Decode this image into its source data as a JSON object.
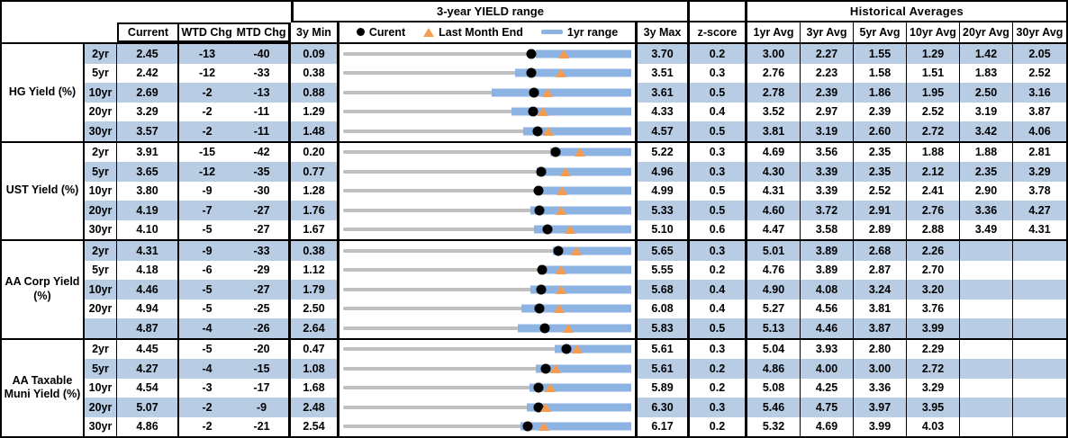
{
  "colors": {
    "stripe": "#b8cce4",
    "bar": "#8db3e2",
    "track": "#bfbfbf",
    "triangle": "#f79b50",
    "dot": "#000000"
  },
  "chart_data": {
    "type": "table",
    "column_groups": {
      "yield_range": "3-year YIELD range",
      "historical": "Historical Averages"
    },
    "columns": [
      "Current",
      "WTD Chg",
      "MTD Chg",
      "3y Min",
      "3y Max",
      "z-score",
      "1yr Avg",
      "3yr Avg",
      "5yr Avg",
      "10yr Avg",
      "20yr Avg",
      "30yr Avg"
    ],
    "legend": [
      {
        "marker": "current-dot",
        "label": "Curent"
      },
      {
        "marker": "last-month-end-triangle",
        "label": "Last Month End"
      },
      {
        "marker": "one-year-range-bar",
        "label": "1yr range"
      }
    ],
    "sections": [
      {
        "label": "HG Yield (%)",
        "rows": [
          {
            "tenor": "2yr",
            "current": "2.45",
            "wtd": "-13",
            "mtd": "-40",
            "min": "0.09",
            "max": "3.70",
            "z": "0.2",
            "bar_lo": 2.5,
            "avgs": [
              "3.00",
              "2.27",
              "1.55",
              "1.29",
              "1.42",
              "2.05"
            ]
          },
          {
            "tenor": "5yr",
            "current": "2.42",
            "wtd": "-12",
            "mtd": "-33",
            "min": "0.38",
            "max": "3.51",
            "z": "0.3",
            "bar_lo": 2.25,
            "avgs": [
              "2.76",
              "2.23",
              "1.58",
              "1.51",
              "1.83",
              "2.52"
            ]
          },
          {
            "tenor": "10yr",
            "current": "2.69",
            "wtd": "-2",
            "mtd": "-13",
            "min": "0.88",
            "max": "3.61",
            "z": "0.5",
            "bar_lo": 2.29,
            "avgs": [
              "2.78",
              "2.39",
              "1.86",
              "1.95",
              "2.50",
              "3.16"
            ]
          },
          {
            "tenor": "20yr",
            "current": "3.29",
            "wtd": "-2",
            "mtd": "-11",
            "min": "1.29",
            "max": "4.33",
            "z": "0.4",
            "bar_lo": 3.07,
            "avgs": [
              "3.52",
              "2.97",
              "2.39",
              "2.52",
              "3.19",
              "3.87"
            ]
          },
          {
            "tenor": "30yr",
            "current": "3.57",
            "wtd": "-2",
            "mtd": "-11",
            "min": "1.48",
            "max": "4.57",
            "z": "0.5",
            "bar_lo": 3.41,
            "avgs": [
              "3.81",
              "3.19",
              "2.60",
              "2.72",
              "3.42",
              "4.06"
            ]
          }
        ]
      },
      {
        "label": "UST Yield (%)",
        "rows": [
          {
            "tenor": "2yr",
            "current": "3.91",
            "wtd": "-15",
            "mtd": "-42",
            "min": "0.20",
            "max": "5.22",
            "z": "0.3",
            "bar_lo": 3.81,
            "avgs": [
              "4.69",
              "3.56",
              "2.35",
              "1.88",
              "1.88",
              "2.81"
            ]
          },
          {
            "tenor": "5yr",
            "current": "3.65",
            "wtd": "-12",
            "mtd": "-35",
            "min": "0.77",
            "max": "4.96",
            "z": "0.3",
            "bar_lo": 3.59,
            "avgs": [
              "4.30",
              "3.39",
              "2.35",
              "2.12",
              "2.35",
              "3.29"
            ]
          },
          {
            "tenor": "10yr",
            "current": "3.80",
            "wtd": "-9",
            "mtd": "-30",
            "min": "1.28",
            "max": "4.99",
            "z": "0.5",
            "bar_lo": 3.76,
            "avgs": [
              "4.31",
              "3.39",
              "2.52",
              "2.41",
              "2.90",
              "3.78"
            ]
          },
          {
            "tenor": "20yr",
            "current": "4.19",
            "wtd": "-7",
            "mtd": "-27",
            "min": "1.76",
            "max": "5.33",
            "z": "0.5",
            "bar_lo": 4.08,
            "avgs": [
              "4.60",
              "3.72",
              "2.91",
              "2.76",
              "3.36",
              "4.27"
            ]
          },
          {
            "tenor": "30yr",
            "current": "4.10",
            "wtd": "-5",
            "mtd": "-27",
            "min": "1.67",
            "max": "5.10",
            "z": "0.6",
            "bar_lo": 3.94,
            "avgs": [
              "4.47",
              "3.58",
              "2.89",
              "2.88",
              "3.49",
              "4.31"
            ]
          }
        ]
      },
      {
        "label": "AA Corp Yield (%)",
        "rows": [
          {
            "tenor": "2yr",
            "current": "4.31",
            "wtd": "-9",
            "mtd": "-33",
            "min": "0.38",
            "max": "5.65",
            "z": "0.3",
            "bar_lo": 4.21,
            "avgs": [
              "5.01",
              "3.89",
              "2.68",
              "2.26",
              "",
              ""
            ]
          },
          {
            "tenor": "5yr",
            "current": "4.18",
            "wtd": "-6",
            "mtd": "-29",
            "min": "1.12",
            "max": "5.55",
            "z": "0.2",
            "bar_lo": 4.12,
            "avgs": [
              "4.76",
              "3.89",
              "2.87",
              "2.70",
              "",
              ""
            ]
          },
          {
            "tenor": "10yr",
            "current": "4.46",
            "wtd": "-5",
            "mtd": "-27",
            "min": "1.79",
            "max": "5.68",
            "z": "0.4",
            "bar_lo": 4.32,
            "avgs": [
              "4.90",
              "4.08",
              "3.24",
              "3.20",
              "",
              ""
            ]
          },
          {
            "tenor": "20yr",
            "current": "4.94",
            "wtd": "-5",
            "mtd": "-25",
            "min": "2.50",
            "max": "6.08",
            "z": "0.4",
            "bar_lo": 4.71,
            "avgs": [
              "5.27",
              "4.56",
              "3.81",
              "3.76",
              "",
              ""
            ]
          },
          {
            "tenor": "",
            "current": "4.87",
            "wtd": "-4",
            "mtd": "-26",
            "min": "2.64",
            "max": "5.83",
            "z": "0.5",
            "bar_lo": 4.57,
            "avgs": [
              "5.13",
              "4.46",
              "3.87",
              "3.99",
              "",
              ""
            ]
          }
        ]
      },
      {
        "label": "AA Taxable Muni Yield (%)",
        "rows": [
          {
            "tenor": "2yr",
            "current": "4.45",
            "wtd": "-5",
            "mtd": "-20",
            "min": "0.47",
            "max": "5.61",
            "z": "0.3",
            "bar_lo": 4.24,
            "avgs": [
              "5.04",
              "3.93",
              "2.80",
              "2.29",
              "",
              ""
            ]
          },
          {
            "tenor": "5yr",
            "current": "4.27",
            "wtd": "-4",
            "mtd": "-15",
            "min": "1.08",
            "max": "5.61",
            "z": "0.2",
            "bar_lo": 4.11,
            "avgs": [
              "4.86",
              "4.00",
              "3.00",
              "2.72",
              "",
              ""
            ]
          },
          {
            "tenor": "10yr",
            "current": "4.54",
            "wtd": "-3",
            "mtd": "-17",
            "min": "1.68",
            "max": "5.89",
            "z": "0.2",
            "bar_lo": 4.4,
            "avgs": [
              "5.08",
              "4.25",
              "3.36",
              "3.29",
              "",
              ""
            ]
          },
          {
            "tenor": "20yr",
            "current": "5.07",
            "wtd": "-2",
            "mtd": "-9",
            "min": "2.48",
            "max": "6.30",
            "z": "0.3",
            "bar_lo": 4.91,
            "avgs": [
              "5.46",
              "4.75",
              "3.97",
              "3.95",
              "",
              ""
            ]
          },
          {
            "tenor": "30yr",
            "current": "4.86",
            "wtd": "-2",
            "mtd": "-21",
            "min": "2.54",
            "max": "6.17",
            "z": "0.2",
            "bar_lo": 4.78,
            "avgs": [
              "5.32",
              "4.69",
              "3.99",
              "4.03",
              "",
              ""
            ]
          }
        ]
      }
    ]
  }
}
